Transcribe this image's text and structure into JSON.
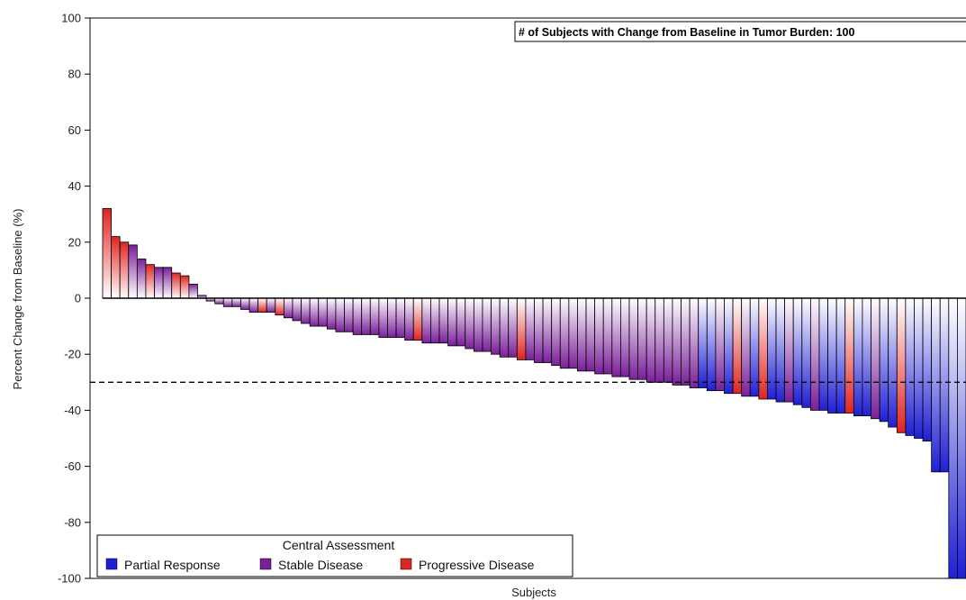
{
  "chart_data": {
    "type": "bar",
    "title": "",
    "xlabel": "Subjects",
    "ylabel": "Percent Change from Baseline (%)",
    "ylim": [
      -100,
      100
    ],
    "yticks": [
      100,
      80,
      60,
      40,
      20,
      0,
      -20,
      -40,
      -60,
      -80,
      -100
    ],
    "ytick_labels": [
      "100",
      "80",
      "60",
      "40",
      "20",
      "0",
      "-20",
      "-40",
      "-60",
      "-80",
      "-100"
    ],
    "reference_line": {
      "y": -30,
      "style": "dashed"
    },
    "annotation": "# of Subjects with Change from Baseline in Tumor Burden: 100",
    "legend": {
      "title": "Central Assessment",
      "position": "bottom-left",
      "entries": [
        {
          "label": "Partial Response",
          "status": "PR",
          "color": "#1f1fd6"
        },
        {
          "label": "Stable Disease",
          "status": "SD",
          "color": "#7a1f9a"
        },
        {
          "label": "Progressive Disease",
          "status": "PD",
          "color": "#e0241f"
        }
      ]
    },
    "colors": {
      "PR": "#1f1fd6",
      "SD": "#7a1f9a",
      "PD": "#e0241f"
    },
    "values": [
      32,
      22,
      20,
      19,
      14,
      12,
      11,
      11,
      9,
      8,
      5,
      1,
      -1,
      -2,
      -3,
      -3,
      -4,
      -5,
      -5,
      -5,
      -6,
      -7,
      -8,
      -9,
      -10,
      -10,
      -11,
      -12,
      -12,
      -13,
      -13,
      -13,
      -14,
      -14,
      -14,
      -15,
      -15,
      -16,
      -16,
      -16,
      -17,
      -17,
      -18,
      -19,
      -19,
      -20,
      -21,
      -21,
      -22,
      -22,
      -23,
      -23,
      -24,
      -25,
      -25,
      -26,
      -26,
      -27,
      -27,
      -28,
      -28,
      -29,
      -29,
      -30,
      -30,
      -30,
      -31,
      -31,
      -32,
      -32,
      -33,
      -33,
      -34,
      -34,
      -35,
      -35,
      -36,
      -36,
      -37,
      -37,
      -38,
      -39,
      -40,
      -40,
      -41,
      -41,
      -41,
      -42,
      -42,
      -43,
      -44,
      -46,
      -48,
      -49,
      -50,
      -51,
      -62,
      -62,
      -100,
      -100
    ],
    "statuses": [
      "PD",
      "PD",
      "PD",
      "SD",
      "SD",
      "PD",
      "SD",
      "SD",
      "PD",
      "PD",
      "SD",
      "SD",
      "SD",
      "SD",
      "SD",
      "SD",
      "SD",
      "SD",
      "PD",
      "SD",
      "PD",
      "SD",
      "SD",
      "SD",
      "SD",
      "SD",
      "SD",
      "SD",
      "SD",
      "SD",
      "SD",
      "SD",
      "SD",
      "SD",
      "SD",
      "SD",
      "PD",
      "SD",
      "SD",
      "SD",
      "SD",
      "SD",
      "SD",
      "SD",
      "SD",
      "SD",
      "SD",
      "SD",
      "PD",
      "SD",
      "SD",
      "SD",
      "SD",
      "SD",
      "SD",
      "SD",
      "SD",
      "SD",
      "SD",
      "SD",
      "SD",
      "SD",
      "SD",
      "SD",
      "SD",
      "SD",
      "SD",
      "SD",
      "SD",
      "PR",
      "PR",
      "SD",
      "PR",
      "PD",
      "SD",
      "PR",
      "PD",
      "PR",
      "PR",
      "SD",
      "PR",
      "PR",
      "SD",
      "PR",
      "PR",
      "PR",
      "PD",
      "PR",
      "PR",
      "SD",
      "PR",
      "PR",
      "PD",
      "PR",
      "PR",
      "PR",
      "PR",
      "PR",
      "PR",
      "PR"
    ]
  }
}
